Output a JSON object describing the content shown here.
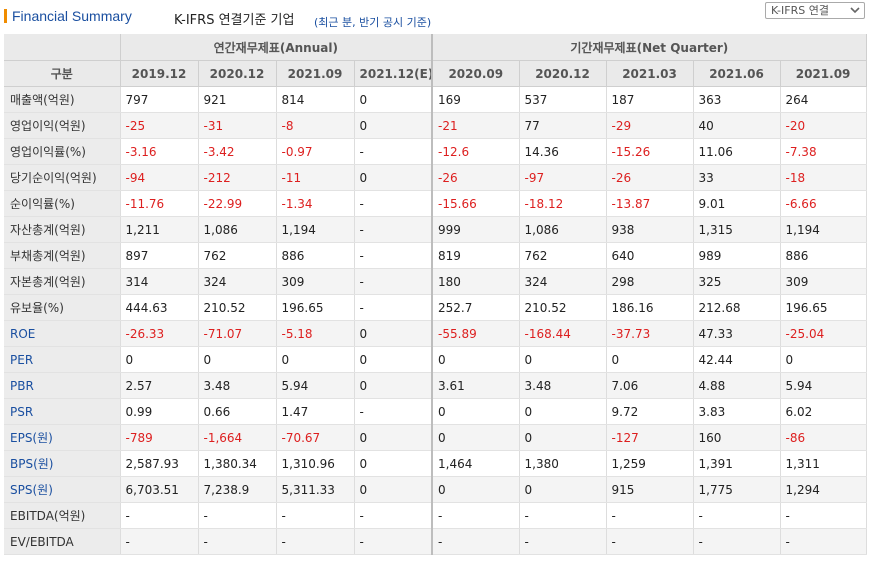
{
  "header": {
    "title": "Financial Summary",
    "subtitle": "K-IFRS 연결기준 기업",
    "note": "(최근 분, 반기 공시 기준)",
    "select_value": "K-IFRS 연결"
  },
  "table": {
    "corner_label": "구분",
    "annual_group": "연간재무제표(Annual)",
    "quarter_group": "기간재무제표(Net Quarter)",
    "annual_periods": [
      "2019.12",
      "2020.12",
      "2021.09",
      "2021.12(E)"
    ],
    "quarter_periods": [
      "2020.09",
      "2020.12",
      "2021.03",
      "2021.06",
      "2021.09"
    ],
    "rows": [
      {
        "label": "매출액(억원)",
        "annual": [
          "797",
          "921",
          "814",
          "0"
        ],
        "quarter": [
          "169",
          "537",
          "187",
          "363",
          "264"
        ]
      },
      {
        "label": "영업이익(억원)",
        "annual": [
          "-25",
          "-31",
          "-8",
          "0"
        ],
        "quarter": [
          "-21",
          "77",
          "-29",
          "40",
          "-20"
        ]
      },
      {
        "label": "영업이익률(%)",
        "annual": [
          "-3.16",
          "-3.42",
          "-0.97",
          "-"
        ],
        "quarter": [
          "-12.6",
          "14.36",
          "-15.26",
          "11.06",
          "-7.38"
        ]
      },
      {
        "label": "당기순이익(억원)",
        "annual": [
          "-94",
          "-212",
          "-11",
          "0"
        ],
        "quarter": [
          "-26",
          "-97",
          "-26",
          "33",
          "-18"
        ]
      },
      {
        "label": "순이익률(%)",
        "annual": [
          "-11.76",
          "-22.99",
          "-1.34",
          "-"
        ],
        "quarter": [
          "-15.66",
          "-18.12",
          "-13.87",
          "9.01",
          "-6.66"
        ]
      },
      {
        "label": "자산총계(억원)",
        "annual": [
          "1,211",
          "1,086",
          "1,194",
          "-"
        ],
        "quarter": [
          "999",
          "1,086",
          "938",
          "1,315",
          "1,194"
        ]
      },
      {
        "label": "부채총계(억원)",
        "annual": [
          "897",
          "762",
          "886",
          "-"
        ],
        "quarter": [
          "819",
          "762",
          "640",
          "989",
          "886"
        ]
      },
      {
        "label": "자본총계(억원)",
        "annual": [
          "314",
          "324",
          "309",
          "-"
        ],
        "quarter": [
          "180",
          "324",
          "298",
          "325",
          "309"
        ]
      },
      {
        "label": "유보율(%)",
        "annual": [
          "444.63",
          "210.52",
          "196.65",
          "-"
        ],
        "quarter": [
          "252.7",
          "210.52",
          "186.16",
          "212.68",
          "196.65"
        ]
      },
      {
        "label": "ROE",
        "blue": true,
        "annual": [
          "-26.33",
          "-71.07",
          "-5.18",
          "0"
        ],
        "quarter": [
          "-55.89",
          "-168.44",
          "-37.73",
          "47.33",
          "-25.04"
        ]
      },
      {
        "label": "PER",
        "blue": true,
        "annual": [
          "0",
          "0",
          "0",
          "0"
        ],
        "quarter": [
          "0",
          "0",
          "0",
          "42.44",
          "0"
        ]
      },
      {
        "label": "PBR",
        "blue": true,
        "annual": [
          "2.57",
          "3.48",
          "5.94",
          "0"
        ],
        "quarter": [
          "3.61",
          "3.48",
          "7.06",
          "4.88",
          "5.94"
        ]
      },
      {
        "label": "PSR",
        "blue": true,
        "annual": [
          "0.99",
          "0.66",
          "1.47",
          "-"
        ],
        "quarter": [
          "0",
          "0",
          "9.72",
          "3.83",
          "6.02"
        ]
      },
      {
        "label": "EPS(원)",
        "blue": true,
        "annual": [
          "-789",
          "-1,664",
          "-70.67",
          "0"
        ],
        "quarter": [
          "0",
          "0",
          "-127",
          "160",
          "-86"
        ]
      },
      {
        "label": "BPS(원)",
        "blue": true,
        "annual": [
          "2,587.93",
          "1,380.34",
          "1,310.96",
          "0"
        ],
        "quarter": [
          "1,464",
          "1,380",
          "1,259",
          "1,391",
          "1,311"
        ]
      },
      {
        "label": "SPS(원)",
        "blue": true,
        "annual": [
          "6,703.51",
          "7,238.9",
          "5,311.33",
          "0"
        ],
        "quarter": [
          "0",
          "0",
          "915",
          "1,775",
          "1,294"
        ]
      },
      {
        "label": "EBITDA(억원)",
        "annual": [
          "-",
          "-",
          "-",
          "-"
        ],
        "quarter": [
          "-",
          "-",
          "-",
          "-",
          "-"
        ]
      },
      {
        "label": "EV/EBITDA",
        "annual": [
          "-",
          "-",
          "-",
          "-"
        ],
        "quarter": [
          "-",
          "-",
          "-",
          "-",
          "-"
        ]
      }
    ]
  }
}
